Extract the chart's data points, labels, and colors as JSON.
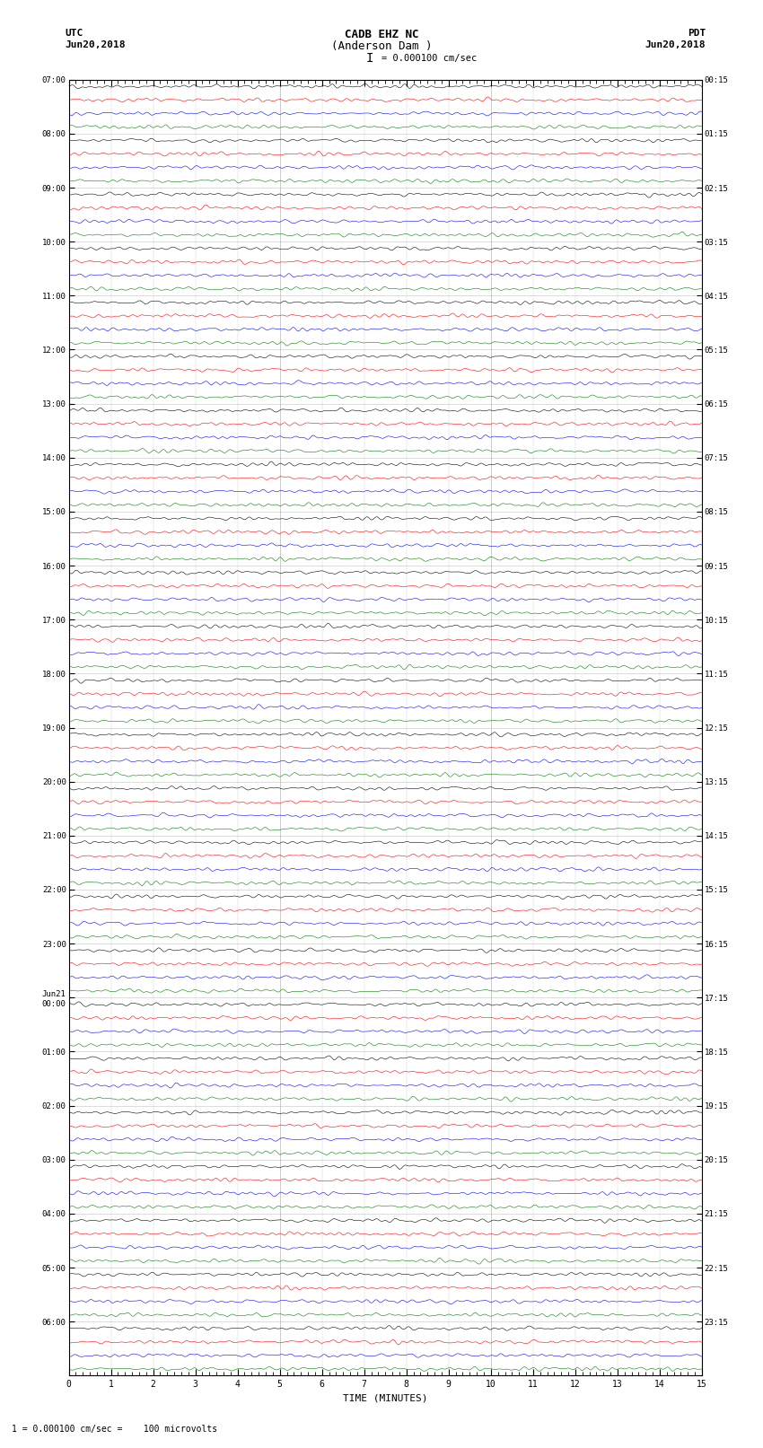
{
  "title_line1": "CADB EHZ NC",
  "title_line2": "(Anderson Dam )",
  "title_line3": "I = 0.000100 cm/sec",
  "left_label_line1": "UTC",
  "left_label_line2": "Jun20,2018",
  "right_label_line1": "PDT",
  "right_label_line2": "Jun20,2018",
  "bottom_label": "TIME (MINUTES)",
  "bottom_note": "1 = 0.000100 cm/sec =   100 microvolts",
  "trace_colors": [
    "black",
    "red",
    "blue",
    "green"
  ],
  "bg_color": "white",
  "noise_seed": 42,
  "figsize": [
    8.5,
    16.13
  ],
  "dpi": 100,
  "minutes_per_row": 15,
  "num_trace_rows": 96,
  "left_utc_labels": [
    "07:00",
    "08:00",
    "09:00",
    "10:00",
    "11:00",
    "12:00",
    "13:00",
    "14:00",
    "15:00",
    "16:00",
    "17:00",
    "18:00",
    "19:00",
    "20:00",
    "21:00",
    "22:00",
    "23:00",
    "Jun21\n00:00",
    "01:00",
    "02:00",
    "03:00",
    "04:00",
    "05:00",
    "06:00"
  ],
  "right_pdt_labels": [
    "00:15",
    "01:15",
    "02:15",
    "03:15",
    "04:15",
    "05:15",
    "06:15",
    "07:15",
    "08:15",
    "09:15",
    "10:15",
    "11:15",
    "12:15",
    "13:15",
    "14:15",
    "15:15",
    "16:15",
    "17:15",
    "18:15",
    "19:15",
    "20:15",
    "21:15",
    "22:15",
    "23:15"
  ],
  "trace_amp": 0.28,
  "trace_lw": 0.4,
  "noise_scale": 0.06
}
